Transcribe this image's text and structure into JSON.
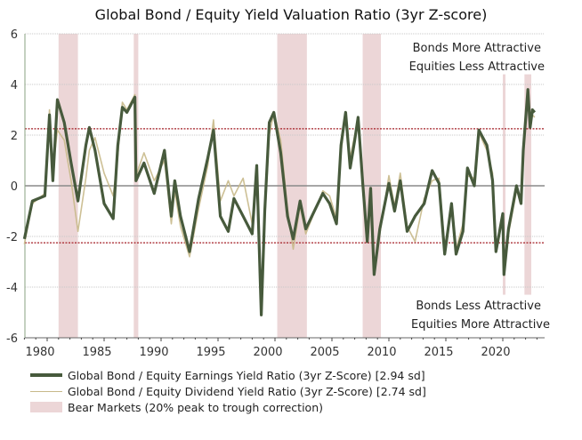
{
  "chart_data": {
    "type": "line",
    "title": "Global Bond / Equity Yield Valuation Ratio (3yr Z-score)",
    "xlim": [
      1978,
      2023.8
    ],
    "ylim": [
      -6,
      6
    ],
    "x_ticks": [
      1980,
      1985,
      1990,
      1995,
      2000,
      2005,
      2010,
      2015,
      2020
    ],
    "y_ticks": [
      6,
      4,
      2,
      0,
      -2,
      -4,
      -6
    ],
    "grid": "horizontal dotted",
    "thresholds": [
      2.25,
      -2.25
    ],
    "annotations": {
      "top": [
        "Bonds More Attractive",
        "Equities Less Attractive"
      ],
      "bottom": [
        "Bonds Less Attractive",
        "Equities More Attractive"
      ]
    },
    "colors": {
      "earnings": "#475a3c",
      "dividend": "#c8b98a",
      "bear": "#ecd6d7",
      "threshold": "#a31d24",
      "zero": "#8a8a8a",
      "grid": "#c8c8c8"
    },
    "bear_markets": [
      [
        1981.0,
        1982.7
      ],
      [
        1987.6,
        1988.0
      ],
      [
        2000.2,
        2002.8
      ],
      [
        2007.7,
        2009.3
      ],
      [
        2020.0,
        2020.2
      ],
      [
        2021.9,
        2022.5
      ]
    ],
    "series": [
      {
        "name": "Global Bond / Equity Earnings Yield Ratio (3yr Z-Score) [2.94 sd]",
        "key": "earnings",
        "points": [
          [
            1978.0,
            -2.1
          ],
          [
            1978.7,
            -0.6
          ],
          [
            1979.8,
            -0.4
          ],
          [
            1980.2,
            2.8
          ],
          [
            1980.5,
            0.2
          ],
          [
            1980.9,
            3.4
          ],
          [
            1981.5,
            2.5
          ],
          [
            1982.1,
            0.9
          ],
          [
            1982.7,
            -0.6
          ],
          [
            1983.4,
            1.6
          ],
          [
            1983.7,
            2.3
          ],
          [
            1984.2,
            1.4
          ],
          [
            1985.0,
            -0.7
          ],
          [
            1985.8,
            -1.3
          ],
          [
            1986.2,
            1.6
          ],
          [
            1986.6,
            3.1
          ],
          [
            1987.0,
            2.9
          ],
          [
            1987.7,
            3.5
          ],
          [
            1987.8,
            0.2
          ],
          [
            1988.5,
            0.9
          ],
          [
            1989.4,
            -0.3
          ],
          [
            1990.3,
            1.4
          ],
          [
            1990.9,
            -1.2
          ],
          [
            1991.2,
            0.2
          ],
          [
            1991.7,
            -1.2
          ],
          [
            1992.5,
            -2.6
          ],
          [
            1993.3,
            -0.5
          ],
          [
            1994.1,
            1.1
          ],
          [
            1994.6,
            2.2
          ],
          [
            1995.2,
            -1.2
          ],
          [
            1995.9,
            -1.8
          ],
          [
            1996.4,
            -0.5
          ],
          [
            1997.2,
            -1.2
          ],
          [
            1998.0,
            -1.9
          ],
          [
            1998.4,
            0.8
          ],
          [
            1998.8,
            -5.1
          ],
          [
            1999.1,
            -1.0
          ],
          [
            1999.5,
            2.5
          ],
          [
            1999.9,
            2.9
          ],
          [
            2000.5,
            1.3
          ],
          [
            2001.1,
            -1.2
          ],
          [
            2001.6,
            -2.1
          ],
          [
            2002.2,
            -0.6
          ],
          [
            2002.7,
            -1.7
          ],
          [
            2004.2,
            -0.3
          ],
          [
            2004.8,
            -0.7
          ],
          [
            2005.4,
            -1.5
          ],
          [
            2005.8,
            1.6
          ],
          [
            2006.2,
            2.9
          ],
          [
            2006.6,
            0.7
          ],
          [
            2007.0,
            1.8
          ],
          [
            2007.3,
            2.7
          ],
          [
            2007.7,
            0.1
          ],
          [
            2008.1,
            -2.2
          ],
          [
            2008.4,
            -0.1
          ],
          [
            2008.7,
            -3.5
          ],
          [
            2009.2,
            -1.7
          ],
          [
            2010.0,
            0.1
          ],
          [
            2010.5,
            -1.0
          ],
          [
            2011.0,
            0.2
          ],
          [
            2011.6,
            -1.8
          ],
          [
            2012.3,
            -1.2
          ],
          [
            2013.1,
            -0.7
          ],
          [
            2013.8,
            0.6
          ],
          [
            2014.4,
            0.1
          ],
          [
            2014.9,
            -2.7
          ],
          [
            2015.5,
            -0.7
          ],
          [
            2015.9,
            -2.7
          ],
          [
            2016.5,
            -1.8
          ],
          [
            2016.9,
            0.7
          ],
          [
            2017.5,
            0.0
          ],
          [
            2017.9,
            2.2
          ],
          [
            2018.6,
            1.6
          ],
          [
            2019.1,
            0.2
          ],
          [
            2019.4,
            -2.6
          ],
          [
            2020.0,
            -1.1
          ],
          [
            2020.1,
            -3.5
          ],
          [
            2020.5,
            -1.7
          ],
          [
            2021.2,
            0.0
          ],
          [
            2021.6,
            -0.7
          ],
          [
            2021.8,
            1.4
          ],
          [
            2022.2,
            3.8
          ],
          [
            2022.4,
            2.3
          ],
          [
            2022.6,
            3.0
          ],
          [
            2022.8,
            2.9
          ]
        ]
      },
      {
        "name": "Global Bond / Equity Dividend Yield Ratio (3yr Z-Score) [2.74 sd]",
        "key": "dividend",
        "points": [
          [
            1978.0,
            -2.3
          ],
          [
            1978.7,
            -0.7
          ],
          [
            1979.8,
            -0.3
          ],
          [
            1980.2,
            3.0
          ],
          [
            1980.5,
            0.6
          ],
          [
            1980.9,
            2.2
          ],
          [
            1981.5,
            1.8
          ],
          [
            1982.1,
            0.2
          ],
          [
            1982.7,
            -1.8
          ],
          [
            1983.4,
            0.3
          ],
          [
            1983.7,
            1.4
          ],
          [
            1984.2,
            1.9
          ],
          [
            1985.0,
            0.5
          ],
          [
            1985.8,
            -0.4
          ],
          [
            1986.2,
            1.2
          ],
          [
            1986.6,
            3.3
          ],
          [
            1987.0,
            3.0
          ],
          [
            1987.7,
            3.6
          ],
          [
            1987.8,
            0.4
          ],
          [
            1988.5,
            1.3
          ],
          [
            1989.4,
            0.2
          ],
          [
            1990.3,
            1.0
          ],
          [
            1990.9,
            -1.5
          ],
          [
            1991.2,
            -0.2
          ],
          [
            1991.7,
            -1.6
          ],
          [
            1992.5,
            -2.8
          ],
          [
            1993.3,
            -0.9
          ],
          [
            1994.1,
            0.8
          ],
          [
            1994.6,
            2.6
          ],
          [
            1995.2,
            -0.6
          ],
          [
            1995.9,
            0.2
          ],
          [
            1996.4,
            -0.4
          ],
          [
            1997.2,
            0.3
          ],
          [
            1998.0,
            -1.5
          ],
          [
            1998.4,
            0.5
          ],
          [
            1998.8,
            -5.0
          ],
          [
            1999.1,
            -1.4
          ],
          [
            1999.5,
            2.0
          ],
          [
            1999.9,
            2.9
          ],
          [
            2000.5,
            1.8
          ],
          [
            2001.1,
            -0.9
          ],
          [
            2001.6,
            -2.5
          ],
          [
            2002.2,
            -0.8
          ],
          [
            2002.7,
            -1.9
          ],
          [
            2004.2,
            -0.2
          ],
          [
            2004.8,
            -0.4
          ],
          [
            2005.4,
            -1.3
          ],
          [
            2005.8,
            1.3
          ],
          [
            2006.2,
            2.9
          ],
          [
            2006.6,
            1.1
          ],
          [
            2007.0,
            2.0
          ],
          [
            2007.3,
            2.4
          ],
          [
            2007.7,
            0.4
          ],
          [
            2008.1,
            -2.0
          ],
          [
            2008.4,
            -0.4
          ],
          [
            2008.7,
            -3.3
          ],
          [
            2009.2,
            -1.9
          ],
          [
            2010.0,
            0.4
          ],
          [
            2010.5,
            -0.8
          ],
          [
            2011.0,
            0.5
          ],
          [
            2011.6,
            -1.6
          ],
          [
            2012.3,
            -2.2
          ],
          [
            2013.1,
            -0.5
          ],
          [
            2013.8,
            0.2
          ],
          [
            2014.4,
            0.3
          ],
          [
            2014.9,
            -2.4
          ],
          [
            2015.5,
            -0.9
          ],
          [
            2015.9,
            -2.5
          ],
          [
            2016.5,
            -1.5
          ],
          [
            2016.9,
            0.4
          ],
          [
            2017.5,
            0.3
          ],
          [
            2017.9,
            2.1
          ],
          [
            2018.6,
            1.4
          ],
          [
            2019.1,
            0.5
          ],
          [
            2019.4,
            -2.4
          ],
          [
            2020.0,
            -1.4
          ],
          [
            2020.1,
            -3.3
          ],
          [
            2020.5,
            -1.9
          ],
          [
            2021.2,
            -0.2
          ],
          [
            2021.6,
            -0.5
          ],
          [
            2021.8,
            1.2
          ],
          [
            2022.2,
            3.6
          ],
          [
            2022.4,
            2.5
          ],
          [
            2022.6,
            2.8
          ],
          [
            2022.8,
            2.7
          ]
        ]
      }
    ],
    "legend": [
      {
        "label": "Global Bond / Equity Earnings Yield Ratio (3yr Z-Score) [2.94 sd]",
        "key": "earnings"
      },
      {
        "label": "Global Bond / Equity Dividend Yield Ratio (3yr Z-Score) [2.74 sd]",
        "key": "dividend"
      },
      {
        "label": "Bear Markets (20% peak to trough correction)",
        "key": "bear"
      }
    ],
    "legend_placement": "bottom"
  }
}
